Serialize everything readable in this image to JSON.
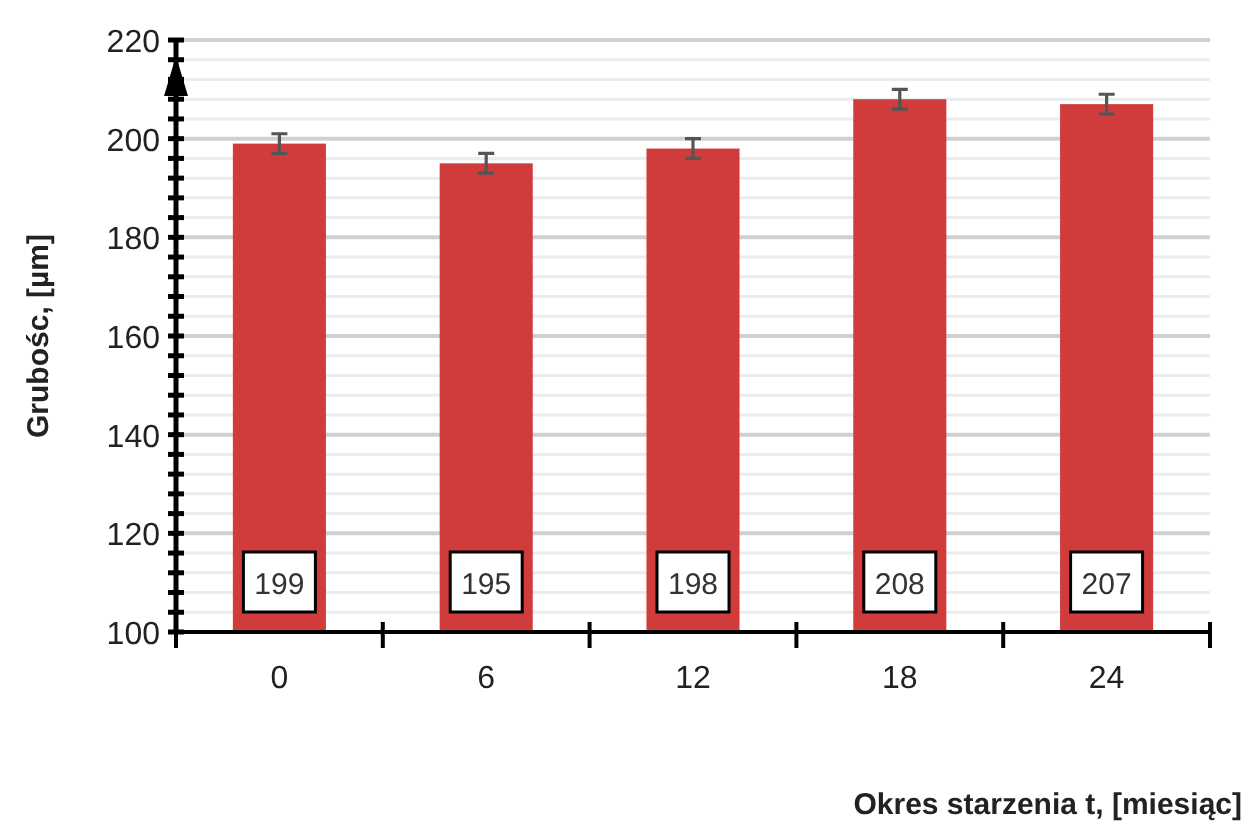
{
  "chart_data": {
    "type": "bar",
    "xlabel": "Okres starzenia t,  [miesiąc]",
    "ylabel": "Grubośc, [µm]",
    "categories": [
      "0",
      "6",
      "12",
      "18",
      "24"
    ],
    "values": [
      199,
      195,
      198,
      208,
      207
    ],
    "color": "#d03c3c",
    "errors": [
      2,
      2,
      2,
      2,
      2
    ],
    "data_labels": true,
    "ylim": [
      100,
      220
    ],
    "yticks": [
      100,
      {
        "value": 104,
        "label": null
      },
      {
        "value": 108,
        "label": null
      },
      {
        "value": 112,
        "label": null
      },
      {
        "value": 116,
        "label": null
      },
      120,
      {
        "value": 124,
        "label": null
      },
      {
        "value": 128,
        "label": null
      },
      {
        "value": 132,
        "label": null
      },
      {
        "value": 136,
        "label": null
      },
      140,
      {
        "value": 144,
        "label": null
      },
      {
        "value": 148,
        "label": null
      },
      {
        "value": 152,
        "label": null
      },
      {
        "value": 156,
        "label": null
      },
      160,
      {
        "value": 164,
        "label": null
      },
      {
        "value": 168,
        "label": null
      },
      {
        "value": 172,
        "label": null
      },
      {
        "value": 176,
        "label": null
      },
      180,
      {
        "value": 184,
        "label": null
      },
      {
        "value": 188,
        "label": null
      },
      {
        "value": 192,
        "label": null
      },
      {
        "value": 196,
        "label": null
      },
      200,
      {
        "value": 204,
        "label": null
      },
      {
        "value": 208,
        "label": null
      },
      {
        "value": 212,
        "label": null
      },
      {
        "value": 216,
        "label": null
      },
      220
    ],
    "grid": "y"
  }
}
